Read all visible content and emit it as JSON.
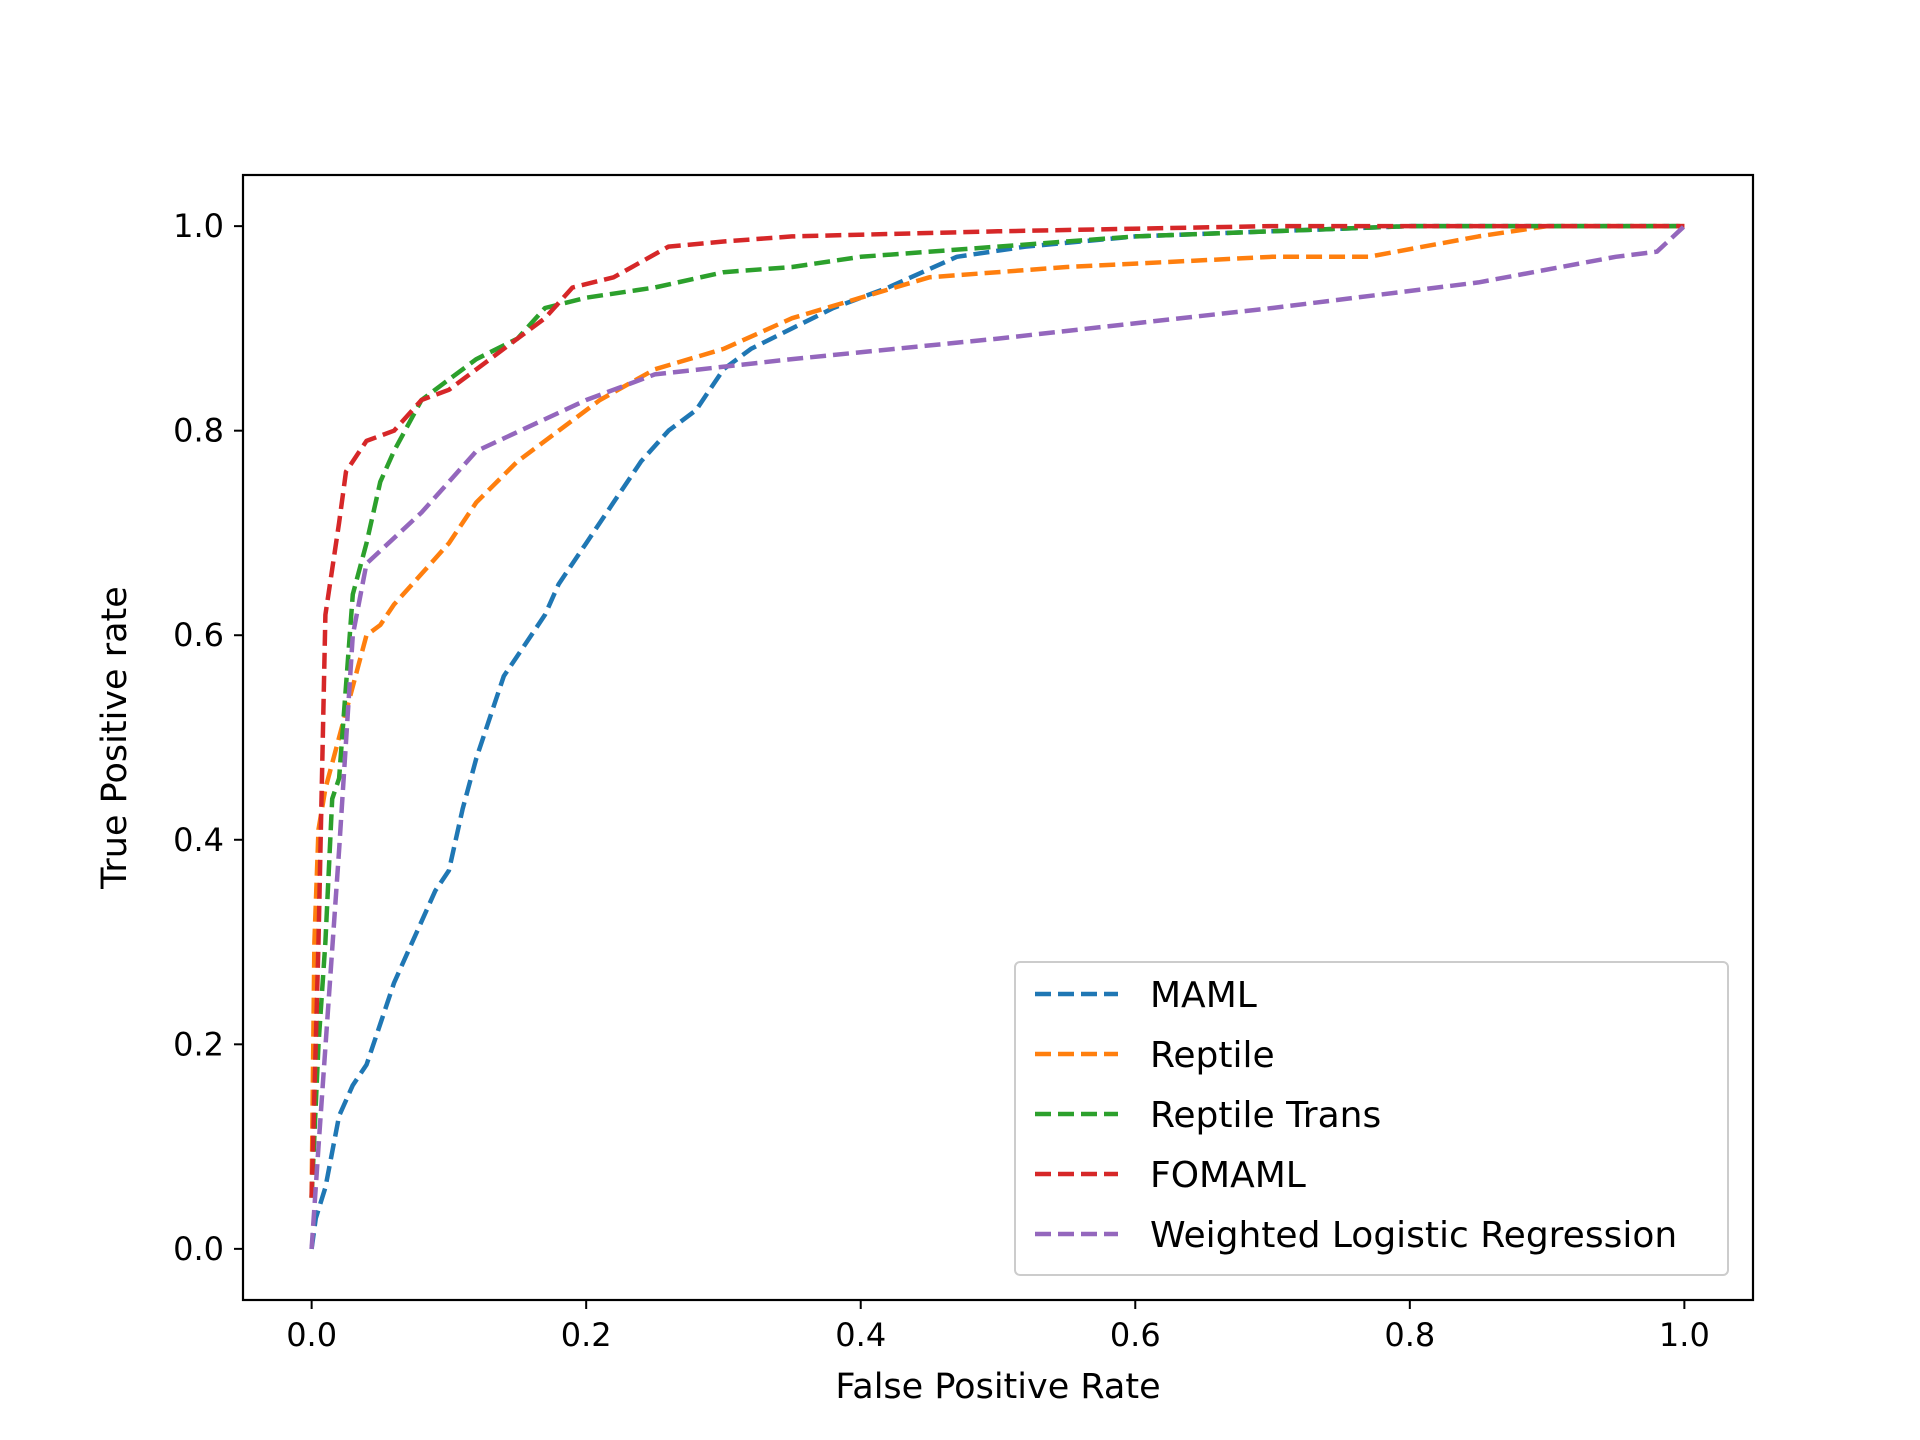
{
  "chart_data": {
    "type": "line",
    "xlabel": "False Positive Rate",
    "ylabel": "True Positive rate",
    "xlim": [
      -0.05,
      1.05
    ],
    "ylim": [
      -0.05,
      1.05
    ],
    "xticks": [
      0.0,
      0.2,
      0.4,
      0.6,
      0.8,
      1.0
    ],
    "yticks": [
      0.0,
      0.2,
      0.4,
      0.6,
      0.8,
      1.0
    ],
    "xtick_labels": [
      "0.0",
      "0.2",
      "0.4",
      "0.6",
      "0.8",
      "1.0"
    ],
    "ytick_labels": [
      "0.0",
      "0.2",
      "0.4",
      "0.6",
      "0.8",
      "1.0"
    ],
    "grid": false,
    "legend_position": "lower-right",
    "series": [
      {
        "name": "MAML",
        "color": "#1f77b4",
        "points": [
          [
            0,
            0
          ],
          [
            0.003,
            0.03
          ],
          [
            0.01,
            0.06
          ],
          [
            0.02,
            0.13
          ],
          [
            0.03,
            0.16
          ],
          [
            0.04,
            0.18
          ],
          [
            0.05,
            0.22
          ],
          [
            0.06,
            0.26
          ],
          [
            0.07,
            0.29
          ],
          [
            0.08,
            0.32
          ],
          [
            0.09,
            0.35
          ],
          [
            0.1,
            0.37
          ],
          [
            0.11,
            0.43
          ],
          [
            0.12,
            0.48
          ],
          [
            0.13,
            0.52
          ],
          [
            0.14,
            0.56
          ],
          [
            0.155,
            0.59
          ],
          [
            0.17,
            0.62
          ],
          [
            0.18,
            0.65
          ],
          [
            0.2,
            0.69
          ],
          [
            0.22,
            0.73
          ],
          [
            0.24,
            0.77
          ],
          [
            0.26,
            0.8
          ],
          [
            0.28,
            0.82
          ],
          [
            0.3,
            0.86
          ],
          [
            0.32,
            0.88
          ],
          [
            0.35,
            0.9
          ],
          [
            0.38,
            0.92
          ],
          [
            0.42,
            0.94
          ],
          [
            0.47,
            0.97
          ],
          [
            0.52,
            0.98
          ],
          [
            0.6,
            0.99
          ],
          [
            0.8,
            1.0
          ],
          [
            1.0,
            1.0
          ]
        ]
      },
      {
        "name": "Reptile",
        "color": "#ff7f0e",
        "points": [
          [
            0,
            0.05
          ],
          [
            0.002,
            0.3
          ],
          [
            0.005,
            0.41
          ],
          [
            0.01,
            0.45
          ],
          [
            0.02,
            0.5
          ],
          [
            0.03,
            0.55
          ],
          [
            0.04,
            0.6
          ],
          [
            0.05,
            0.61
          ],
          [
            0.06,
            0.63
          ],
          [
            0.08,
            0.66
          ],
          [
            0.1,
            0.69
          ],
          [
            0.12,
            0.73
          ],
          [
            0.15,
            0.77
          ],
          [
            0.18,
            0.8
          ],
          [
            0.21,
            0.83
          ],
          [
            0.25,
            0.86
          ],
          [
            0.3,
            0.88
          ],
          [
            0.35,
            0.91
          ],
          [
            0.4,
            0.93
          ],
          [
            0.45,
            0.95
          ],
          [
            0.55,
            0.96
          ],
          [
            0.7,
            0.97
          ],
          [
            0.77,
            0.97
          ],
          [
            0.85,
            0.99
          ],
          [
            0.9,
            1.0
          ],
          [
            1.0,
            1.0
          ]
        ]
      },
      {
        "name": "Reptile Trans",
        "color": "#2ca02c",
        "points": [
          [
            0,
            0.05
          ],
          [
            0.005,
            0.2
          ],
          [
            0.01,
            0.3
          ],
          [
            0.015,
            0.44
          ],
          [
            0.02,
            0.46
          ],
          [
            0.03,
            0.64
          ],
          [
            0.04,
            0.69
          ],
          [
            0.05,
            0.75
          ],
          [
            0.06,
            0.78
          ],
          [
            0.08,
            0.83
          ],
          [
            0.1,
            0.85
          ],
          [
            0.12,
            0.87
          ],
          [
            0.15,
            0.89
          ],
          [
            0.17,
            0.92
          ],
          [
            0.2,
            0.93
          ],
          [
            0.25,
            0.94
          ],
          [
            0.3,
            0.955
          ],
          [
            0.35,
            0.96
          ],
          [
            0.4,
            0.97
          ],
          [
            0.5,
            0.98
          ],
          [
            0.6,
            0.99
          ],
          [
            0.8,
            1.0
          ],
          [
            1.0,
            1.0
          ]
        ]
      },
      {
        "name": "FOMAML",
        "color": "#d62728",
        "points": [
          [
            0,
            0.05
          ],
          [
            0.005,
            0.3
          ],
          [
            0.01,
            0.62
          ],
          [
            0.02,
            0.71
          ],
          [
            0.025,
            0.76
          ],
          [
            0.04,
            0.79
          ],
          [
            0.06,
            0.8
          ],
          [
            0.08,
            0.83
          ],
          [
            0.1,
            0.84
          ],
          [
            0.12,
            0.86
          ],
          [
            0.15,
            0.89
          ],
          [
            0.17,
            0.91
          ],
          [
            0.19,
            0.94
          ],
          [
            0.22,
            0.95
          ],
          [
            0.26,
            0.98
          ],
          [
            0.3,
            0.985
          ],
          [
            0.35,
            0.99
          ],
          [
            0.5,
            0.995
          ],
          [
            0.7,
            1.0
          ],
          [
            1.0,
            1.0
          ]
        ]
      },
      {
        "name": "Weighted Logistic Regression",
        "color": "#9467bd",
        "points": [
          [
            0,
            0
          ],
          [
            0.005,
            0.1
          ],
          [
            0.02,
            0.39
          ],
          [
            0.03,
            0.6
          ],
          [
            0.04,
            0.67
          ],
          [
            0.08,
            0.72
          ],
          [
            0.12,
            0.78
          ],
          [
            0.2,
            0.83
          ],
          [
            0.25,
            0.855
          ],
          [
            0.35,
            0.87
          ],
          [
            0.5,
            0.89
          ],
          [
            0.7,
            0.92
          ],
          [
            0.85,
            0.945
          ],
          [
            0.95,
            0.97
          ],
          [
            0.98,
            0.975
          ],
          [
            1.0,
            1.0
          ]
        ]
      }
    ]
  }
}
